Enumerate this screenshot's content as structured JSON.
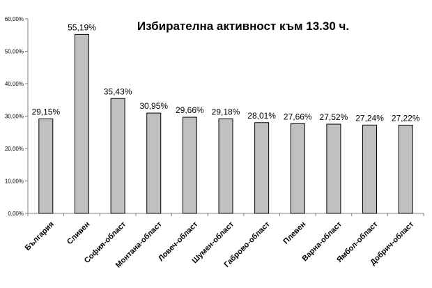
{
  "chart_data": {
    "type": "bar",
    "title": "Избирателна активност към 13.30 ч.",
    "categories": [
      "България",
      "Сливен",
      "София-област",
      "Монтана-област",
      "Ловеч-област",
      "Шумен-област",
      "Габрово-област",
      "Плевен",
      "Варна-област",
      "Ямбол-област",
      "Добрич-област"
    ],
    "values": [
      29.15,
      55.19,
      35.43,
      30.95,
      29.66,
      29.18,
      28.01,
      27.66,
      27.52,
      27.24,
      27.22
    ],
    "data_labels": [
      "29,15%",
      "55,19%",
      "35,43%",
      "30,95%",
      "29,66%",
      "29,18%",
      "28,01%",
      "27,66%",
      "27,52%",
      "27,24%",
      "27,22%"
    ],
    "yticks": [
      "0,00%",
      "10,00%",
      "20,00%",
      "30,00%",
      "40,00%",
      "50,00%",
      "60,00%"
    ],
    "ylim": [
      0,
      60
    ],
    "xlabel": "",
    "ylabel": "",
    "grid": false,
    "legend": "none",
    "colors": {
      "bar_fill": "#c0c0c0",
      "bar_stroke": "#000000",
      "axis": "#808080"
    }
  }
}
